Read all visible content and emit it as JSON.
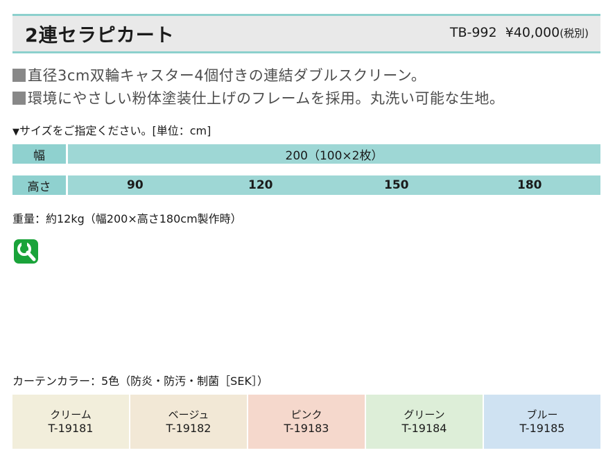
{
  "header": {
    "product_name": "2連セラピカート",
    "model": "TB-992",
    "price": "¥40,000",
    "tax_note": "(税別)"
  },
  "features": [
    "直径3cm双輪キャスター4個付きの連結ダブルスクリーン。",
    "環境にやさしい粉体塗装仕上げのフレームを採用。丸洗い可能な生地。"
  ],
  "size_note": "サイズをご指定ください。[単位：cm]",
  "size_table": {
    "width_label": "幅",
    "width_value": "200（100×2枚）",
    "height_label": "高さ",
    "heights": [
      "90",
      "120",
      "150",
      "180"
    ]
  },
  "weight": "重量：約12kg（幅200×高さ180cm製作時）",
  "icon": {
    "name": "wrench-icon",
    "color": "#1aa33a"
  },
  "curtain": {
    "title": "カーテンカラー：5色（防炎・防汚・制菌［SEK］）",
    "colors": [
      {
        "name": "クリーム",
        "code": "T-19181",
        "color": "#f2eedb"
      },
      {
        "name": "ベージュ",
        "code": "T-19182",
        "color": "#f2e8d6"
      },
      {
        "name": "ピンク",
        "code": "T-19183",
        "color": "#f5d8cc"
      },
      {
        "name": "グリーン",
        "code": "T-19184",
        "color": "#ddeed8"
      },
      {
        "name": "ブルー",
        "code": "T-19185",
        "color": "#cfe2f2"
      }
    ]
  }
}
